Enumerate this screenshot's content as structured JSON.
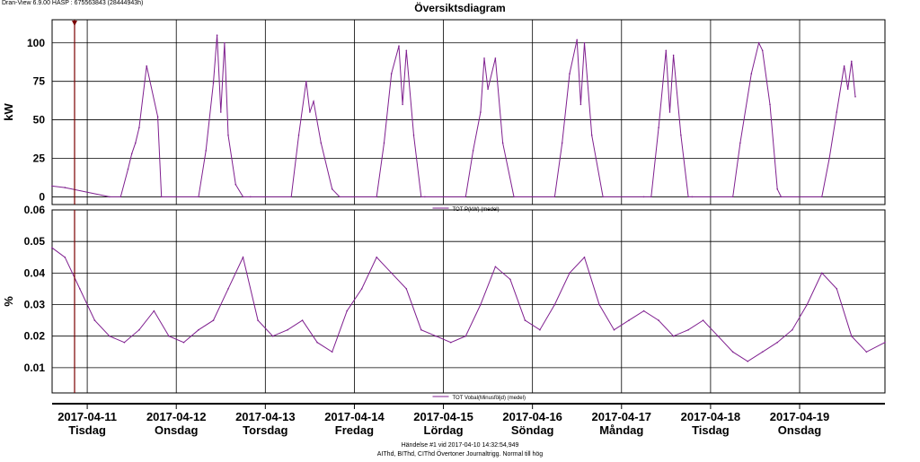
{
  "header": {
    "app_info": "Dran-View 6.9.00 HASP : 675563843 (28444943h)"
  },
  "chart_title": "Översiktsdiagram",
  "footer": {
    "line1": "Händelse #1 vid 2017-04-10 14:32:54,949",
    "line2": "AIThd, BIThd, CIThd Övertoner Journaltrigg. Normal till hög"
  },
  "colors": {
    "series": "#7f1f8f",
    "cursor": "#7a0000",
    "grid": "#000000"
  },
  "x_axis": {
    "dates": [
      "2017-04-11",
      "2017-04-12",
      "2017-04-13",
      "2017-04-14",
      "2017-04-15",
      "2017-04-16",
      "2017-04-17",
      "2017-04-18",
      "2017-04-19"
    ],
    "days": [
      "Tisdag",
      "Onsdag",
      "Torsdag",
      "Fredag",
      "Lördag",
      "Söndag",
      "Måndag",
      "Tisdag",
      "Onsdag"
    ],
    "start": "2017-04-10 14:32",
    "end": "2017-04-19 23:00"
  },
  "chart_data": [
    {
      "type": "line",
      "ylabel": "kW",
      "ylim": [
        -5,
        115
      ],
      "yticks": [
        "0",
        "25",
        "50",
        "75",
        "100"
      ],
      "grid": true,
      "legend": "TOT P(kW) (medel)",
      "legend_position": "bottom-center",
      "series": [
        {
          "name": "TOT P(kW) (medel)",
          "x": [
            "2017-04-10 14:30",
            "2017-04-10 18:00",
            "2017-04-11 06:00",
            "2017-04-11 09:00",
            "2017-04-11 11:00",
            "2017-04-11 12:00",
            "2017-04-11 13:00",
            "2017-04-11 14:00",
            "2017-04-11 16:00",
            "2017-04-11 19:00",
            "2017-04-11 20:00",
            "2017-04-12 06:00",
            "2017-04-12 08:00",
            "2017-04-12 10:00",
            "2017-04-12 11:00",
            "2017-04-12 12:00",
            "2017-04-12 13:00",
            "2017-04-12 14:00",
            "2017-04-12 16:00",
            "2017-04-12 18:00",
            "2017-04-12 20:00",
            "2017-04-13 07:00",
            "2017-04-13 09:00",
            "2017-04-13 11:00",
            "2017-04-13 12:00",
            "2017-04-13 13:00",
            "2017-04-13 15:00",
            "2017-04-13 18:00",
            "2017-04-13 20:00",
            "2017-04-14 06:00",
            "2017-04-14 08:00",
            "2017-04-14 10:00",
            "2017-04-14 12:00",
            "2017-04-14 13:00",
            "2017-04-14 14:00",
            "2017-04-14 16:00",
            "2017-04-14 18:00",
            "2017-04-14 19:00",
            "2017-04-15 06:00",
            "2017-04-15 08:00",
            "2017-04-15 10:00",
            "2017-04-15 11:00",
            "2017-04-15 12:00",
            "2017-04-15 14:00",
            "2017-04-15 16:00",
            "2017-04-15 19:00",
            "2017-04-16 06:00",
            "2017-04-16 08:00",
            "2017-04-16 10:00",
            "2017-04-16 12:00",
            "2017-04-16 13:00",
            "2017-04-16 14:00",
            "2017-04-16 16:00",
            "2017-04-16 19:00",
            "2017-04-17 06:00",
            "2017-04-17 08:00",
            "2017-04-17 10:00",
            "2017-04-17 12:00",
            "2017-04-17 13:00",
            "2017-04-17 14:00",
            "2017-04-17 16:00",
            "2017-04-17 18:00",
            "2017-04-17 19:00",
            "2017-04-18 06:00",
            "2017-04-18 08:00",
            "2017-04-18 11:00",
            "2017-04-18 13:00",
            "2017-04-18 14:00",
            "2017-04-18 16:00",
            "2017-04-18 18:00",
            "2017-04-18 19:00",
            "2017-04-19 06:00",
            "2017-04-19 08:00",
            "2017-04-19 10:00",
            "2017-04-19 12:00",
            "2017-04-19 13:00",
            "2017-04-19 14:00",
            "2017-04-19 15:00"
          ],
          "values": [
            7,
            6,
            0,
            0,
            18,
            28,
            35,
            45,
            85,
            52,
            0,
            0,
            30,
            74,
            105,
            55,
            100,
            40,
            8,
            0,
            0,
            0,
            40,
            75,
            55,
            62,
            35,
            5,
            0,
            0,
            35,
            80,
            98,
            60,
            95,
            40,
            0,
            0,
            0,
            30,
            55,
            90,
            70,
            90,
            35,
            0,
            0,
            35,
            80,
            102,
            60,
            100,
            40,
            0,
            0,
            0,
            45,
            95,
            55,
            92,
            40,
            0,
            0,
            0,
            35,
            80,
            100,
            95,
            60,
            5,
            0,
            0,
            25,
            55,
            85,
            70,
            88,
            65
          ]
        }
      ]
    },
    {
      "type": "line",
      "ylabel": "%",
      "ylim": [
        0.002,
        0.06
      ],
      "yticks": [
        "0.01",
        "0.02",
        "0.03",
        "0.04",
        "0.05",
        "0.06"
      ],
      "grid": true,
      "legend": "TOT Vobal(Minusföljd) (medel)",
      "legend_position": "bottom-center",
      "series": [
        {
          "name": "TOT Vobal(Minusföljd) (medel)",
          "x": [
            "2017-04-10 14:30",
            "2017-04-10 18:00",
            "2017-04-10 22:00",
            "2017-04-11 02:00",
            "2017-04-11 06:00",
            "2017-04-11 10:00",
            "2017-04-11 14:00",
            "2017-04-11 18:00",
            "2017-04-11 22:00",
            "2017-04-12 02:00",
            "2017-04-12 06:00",
            "2017-04-12 10:00",
            "2017-04-12 14:00",
            "2017-04-12 18:00",
            "2017-04-12 22:00",
            "2017-04-13 02:00",
            "2017-04-13 06:00",
            "2017-04-13 10:00",
            "2017-04-13 14:00",
            "2017-04-13 18:00",
            "2017-04-13 22:00",
            "2017-04-14 02:00",
            "2017-04-14 06:00",
            "2017-04-14 10:00",
            "2017-04-14 14:00",
            "2017-04-14 18:00",
            "2017-04-14 22:00",
            "2017-04-15 02:00",
            "2017-04-15 06:00",
            "2017-04-15 10:00",
            "2017-04-15 14:00",
            "2017-04-15 18:00",
            "2017-04-15 22:00",
            "2017-04-16 02:00",
            "2017-04-16 06:00",
            "2017-04-16 10:00",
            "2017-04-16 14:00",
            "2017-04-16 18:00",
            "2017-04-16 22:00",
            "2017-04-17 02:00",
            "2017-04-17 06:00",
            "2017-04-17 10:00",
            "2017-04-17 14:00",
            "2017-04-17 18:00",
            "2017-04-17 22:00",
            "2017-04-18 02:00",
            "2017-04-18 06:00",
            "2017-04-18 10:00",
            "2017-04-18 14:00",
            "2017-04-18 18:00",
            "2017-04-18 22:00",
            "2017-04-19 02:00",
            "2017-04-19 06:00",
            "2017-04-19 10:00",
            "2017-04-19 14:00",
            "2017-04-19 18:00",
            "2017-04-19 23:00"
          ],
          "values": [
            0.048,
            0.045,
            0.035,
            0.025,
            0.02,
            0.018,
            0.022,
            0.028,
            0.02,
            0.018,
            0.022,
            0.025,
            0.035,
            0.045,
            0.025,
            0.02,
            0.022,
            0.025,
            0.018,
            0.015,
            0.028,
            0.035,
            0.045,
            0.04,
            0.035,
            0.022,
            0.02,
            0.018,
            0.02,
            0.03,
            0.042,
            0.038,
            0.025,
            0.022,
            0.03,
            0.04,
            0.045,
            0.03,
            0.022,
            0.025,
            0.028,
            0.025,
            0.02,
            0.022,
            0.025,
            0.02,
            0.015,
            0.012,
            0.015,
            0.018,
            0.022,
            0.03,
            0.04,
            0.035,
            0.02,
            0.015,
            0.018
          ]
        }
      ]
    }
  ]
}
